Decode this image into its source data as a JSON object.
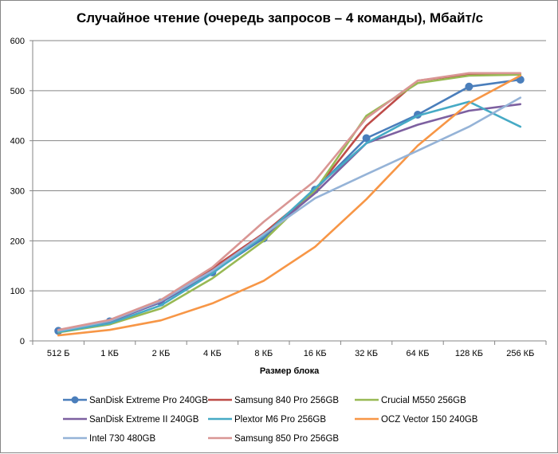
{
  "chart_data": {
    "type": "line",
    "title": "Случайное чтение (очередь запросов – 4 команды), Мбайт/с",
    "xlabel": "Размер блока",
    "ylabel": "",
    "categories": [
      "512 Б",
      "1 КБ",
      "2 КБ",
      "4 КБ",
      "8 КБ",
      "16 КБ",
      "32 КБ",
      "64 КБ",
      "128 КБ",
      "256 КБ"
    ],
    "ylim": [
      0,
      600
    ],
    "yticks": [
      "0",
      "100",
      "200",
      "300",
      "400",
      "500",
      "600"
    ],
    "grid": true,
    "legend_position": "bottom",
    "series": [
      {
        "name": "SanDisk Extreme Pro 240GB",
        "color": "#4a7ebb",
        "marker": "circle",
        "values": [
          20,
          39,
          77,
          137,
          205,
          302,
          405,
          452,
          508,
          522
        ]
      },
      {
        "name": "Samsung 840 Pro 256GB",
        "color": "#be4b48",
        "marker": "none",
        "values": [
          21,
          40,
          80,
          145,
          215,
          300,
          430,
          520,
          533,
          533
        ]
      },
      {
        "name": "Crucial M550 256GB",
        "color": "#98b954",
        "marker": "none",
        "values": [
          17,
          33,
          65,
          125,
          200,
          300,
          450,
          515,
          530,
          532
        ]
      },
      {
        "name": "SanDisk Extreme II 240GB",
        "color": "#7d60a0",
        "marker": "none",
        "values": [
          19,
          38,
          78,
          140,
          210,
          295,
          395,
          432,
          460,
          473
        ]
      },
      {
        "name": "Plextor M6 Pro 256GB",
        "color": "#46aac5",
        "marker": "none",
        "values": [
          18,
          35,
          71,
          135,
          210,
          305,
          395,
          450,
          478,
          428
        ]
      },
      {
        "name": "OCZ Vector 150 240GB",
        "color": "#f79646",
        "marker": "none",
        "values": [
          11,
          22,
          41,
          75,
          120,
          188,
          283,
          390,
          475,
          530
        ]
      },
      {
        "name": "Intel 730 480GB",
        "color": "#95b3d7",
        "marker": "none",
        "values": [
          20,
          40,
          80,
          140,
          213,
          285,
          333,
          380,
          428,
          486
        ]
      },
      {
        "name": "Samsung 850 Pro 256GB",
        "color": "#d99694",
        "marker": "none",
        "values": [
          22,
          42,
          82,
          147,
          238,
          320,
          445,
          520,
          535,
          535
        ]
      }
    ]
  }
}
